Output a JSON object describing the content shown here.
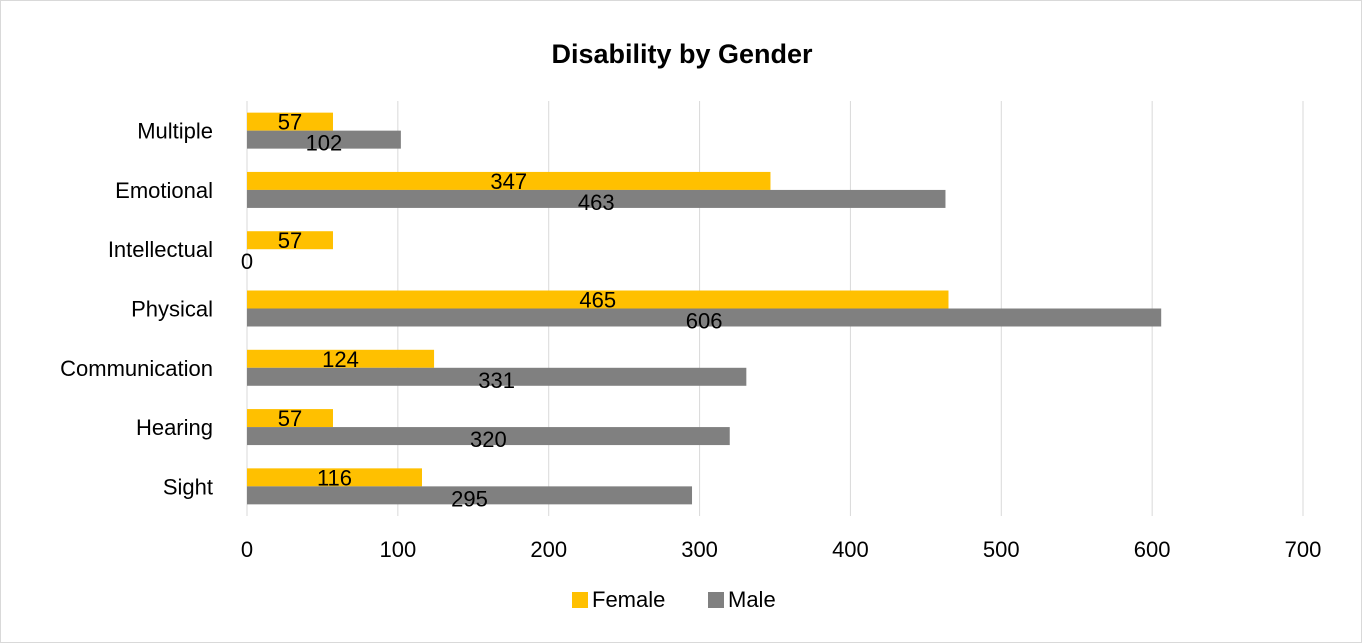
{
  "chart_data": {
    "type": "bar",
    "orientation": "horizontal",
    "title": "Disability by Gender",
    "categories": [
      "Sight",
      "Hearing",
      "Communication",
      "Physical",
      "Intellectual",
      "Emotional",
      "Multiple"
    ],
    "series": [
      {
        "name": "Female",
        "color": "#FFC000",
        "values": [
          116,
          57,
          124,
          465,
          57,
          347,
          57
        ]
      },
      {
        "name": "Male",
        "color": "#808080",
        "values": [
          295,
          320,
          331,
          606,
          0,
          463,
          102
        ]
      }
    ],
    "xlim": [
      0,
      700
    ],
    "xticks": [
      0,
      100,
      200,
      300,
      400,
      500,
      600,
      700
    ],
    "grid": true,
    "legend_position": "bottom",
    "data_labels": true
  }
}
